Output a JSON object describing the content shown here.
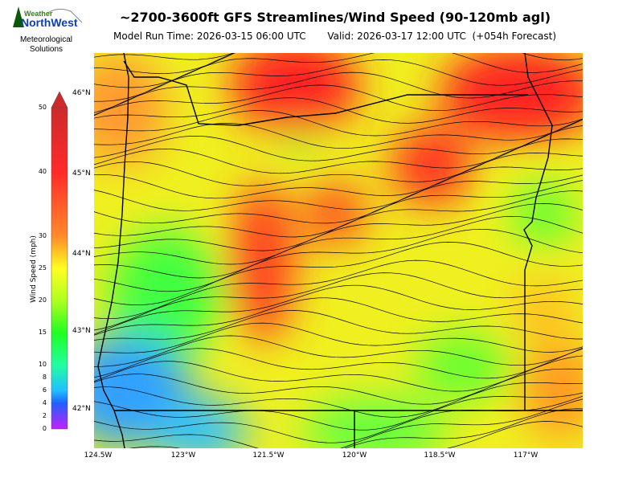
{
  "header": {
    "title": "~2700-3600ft GFS Streamlines/Wind Speed (90-120mb agl)",
    "model_run": "Model Run Time: 2026-03-15 06:00 UTC",
    "valid": "Valid: 2026-03-17 12:00 UTC  (+054h Forecast)"
  },
  "logo": {
    "brand_line1": "Weather",
    "brand_line2": "NorthWest",
    "tagline_1": "Meteorological",
    "tagline_2": "Solutions"
  },
  "colorbar": {
    "label": "Wind Speed (mph)",
    "ticks": [
      "50",
      "40",
      "30",
      "25",
      "20",
      "15",
      "10",
      "8",
      "6",
      "4",
      "2",
      "0"
    ],
    "colors": [
      "#cc2a2a",
      "#ff2a2a",
      "#ff8a2a",
      "#ffd020",
      "#ffff20",
      "#a0ff20",
      "#20ff20",
      "#20ffa0",
      "#20c0ff",
      "#2060ff",
      "#8020ff",
      "#c020ff"
    ]
  },
  "map": {
    "lat_labels": [
      "46°N",
      "45°N",
      "44°N",
      "43°N",
      "42°N"
    ],
    "lon_labels": [
      "124.5W",
      "123°W",
      "121.5°W",
      "120°W",
      "118.5°W",
      "117°W"
    ]
  }
}
